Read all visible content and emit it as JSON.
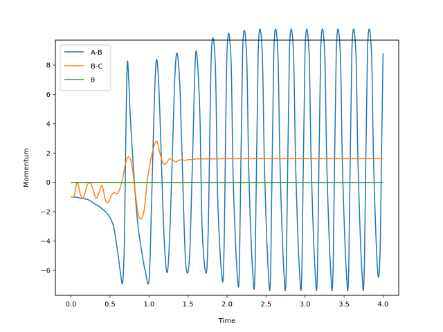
{
  "chart_data": {
    "type": "line",
    "title": "",
    "xlabel": "Time",
    "ylabel": "Momentum",
    "xlim": [
      -0.2,
      4.2
    ],
    "ylim": [
      -7.7,
      9.7
    ],
    "xticks": [
      0.0,
      0.5,
      1.0,
      1.5,
      2.0,
      2.5,
      3.0,
      3.5,
      4.0
    ],
    "xtick_labels": [
      "0.0",
      "0.5",
      "1.0",
      "1.5",
      "2.0",
      "2.5",
      "3.0",
      "3.5",
      "4.0"
    ],
    "yticks": [
      -6,
      -4,
      -2,
      0,
      2,
      4,
      6,
      8
    ],
    "ytick_labels": [
      "−6",
      "−4",
      "−2",
      "0",
      "2",
      "4",
      "6",
      "8"
    ],
    "grid": false,
    "legend_position": "top-left",
    "series": [
      {
        "name": "A-B",
        "color": "#1f77b4",
        "x": [
          0.0,
          0.05,
          0.1,
          0.15,
          0.2,
          0.25,
          0.3,
          0.35,
          0.4,
          0.45,
          0.5,
          0.55,
          0.6,
          0.63,
          0.66,
          0.68,
          0.69,
          0.7,
          0.72,
          0.74,
          0.76,
          0.8,
          0.85,
          0.9,
          0.95,
          1.0,
          1.03,
          1.06,
          1.09,
          1.12,
          1.15,
          1.18,
          1.21,
          1.24,
          1.27,
          1.3,
          1.33,
          1.36,
          1.4,
          1.45,
          1.48,
          1.52,
          1.56,
          1.6,
          1.65,
          1.68,
          1.73,
          1.76,
          1.8,
          1.85,
          1.88,
          1.93,
          1.96,
          2.0,
          2.05,
          2.08,
          2.13,
          2.16,
          2.2,
          2.25,
          2.28,
          2.33,
          2.36,
          2.4,
          2.45,
          2.48,
          2.53,
          2.56,
          2.6,
          2.65,
          2.68,
          2.73,
          2.76,
          2.8,
          2.85,
          2.88,
          2.93,
          2.96,
          3.0,
          3.05,
          3.08,
          3.13,
          3.16,
          3.2,
          3.25,
          3.28,
          3.33,
          3.36,
          3.4,
          3.45,
          3.48,
          3.53,
          3.56,
          3.6,
          3.65,
          3.68,
          3.73,
          3.76,
          3.8,
          3.85,
          3.88,
          3.93,
          3.96,
          3.98,
          4.0
        ],
        "values": [
          -1.0,
          -1.0,
          -1.05,
          -1.1,
          -1.15,
          -1.25,
          -1.45,
          -1.6,
          -1.8,
          -2.05,
          -2.4,
          -3.1,
          -4.8,
          -6.0,
          -6.9,
          -5.0,
          -2.0,
          2.0,
          8.0,
          7.0,
          4.5,
          1.0,
          -2.5,
          -4.5,
          -6.0,
          -6.7,
          -2.0,
          4.0,
          8.2,
          7.2,
          3.0,
          -2.0,
          -5.3,
          -6.0,
          -3.0,
          2.0,
          7.0,
          8.8,
          6.0,
          -3.0,
          -6.0,
          -5.0,
          2.0,
          8.9,
          5.0,
          -3.0,
          -6.2,
          -3.0,
          8.9,
          8.0,
          -1.0,
          -6.2,
          -5.0,
          8.9,
          8.5,
          0.0,
          -6.2,
          -5.5,
          9.0,
          8.8,
          0.5,
          -6.2,
          -5.7,
          9.0,
          9.0,
          1.0,
          -6.2,
          -5.8,
          9.0,
          9.0,
          1.0,
          -6.2,
          -5.8,
          9.0,
          9.0,
          1.0,
          -6.2,
          -5.8,
          9.0,
          9.0,
          1.0,
          -6.2,
          -5.8,
          9.0,
          9.0,
          1.0,
          -6.2,
          -5.8,
          9.0,
          9.0,
          1.0,
          -6.2,
          -5.8,
          9.0,
          9.0,
          1.0,
          -6.2,
          -5.8,
          9.0,
          9.0,
          1.0,
          -6.0,
          -5.0,
          2.0,
          8.8
        ]
      },
      {
        "name": "B-C",
        "color": "#ff7f0e",
        "x": [
          0.0,
          0.04,
          0.08,
          0.12,
          0.16,
          0.2,
          0.24,
          0.28,
          0.32,
          0.36,
          0.4,
          0.44,
          0.48,
          0.52,
          0.56,
          0.6,
          0.65,
          0.7,
          0.74,
          0.78,
          0.82,
          0.86,
          0.9,
          0.94,
          0.98,
          1.02,
          1.06,
          1.1,
          1.14,
          1.18,
          1.22,
          1.26,
          1.3,
          1.34,
          1.38,
          1.42,
          1.46,
          1.5,
          1.55,
          1.6,
          1.7,
          1.8,
          2.0,
          2.5,
          3.0,
          3.5,
          4.0
        ],
        "values": [
          -1.0,
          -0.9,
          0.0,
          -0.8,
          -1.05,
          -0.3,
          0.0,
          -0.4,
          -1.1,
          -0.7,
          -0.2,
          -1.2,
          -1.35,
          -0.85,
          -0.7,
          -0.75,
          0.0,
          1.3,
          1.75,
          1.2,
          -0.5,
          -2.1,
          -2.5,
          -1.8,
          0.2,
          1.5,
          2.4,
          2.8,
          2.0,
          1.3,
          1.3,
          1.6,
          1.55,
          1.4,
          1.5,
          1.55,
          1.5,
          1.55,
          1.55,
          1.6,
          1.6,
          1.6,
          1.62,
          1.62,
          1.62,
          1.62,
          1.62
        ]
      },
      {
        "name": "θ",
        "color": "#2ca02c",
        "x": [
          0.0,
          4.0
        ],
        "values": [
          0.0,
          0.0
        ]
      }
    ]
  }
}
